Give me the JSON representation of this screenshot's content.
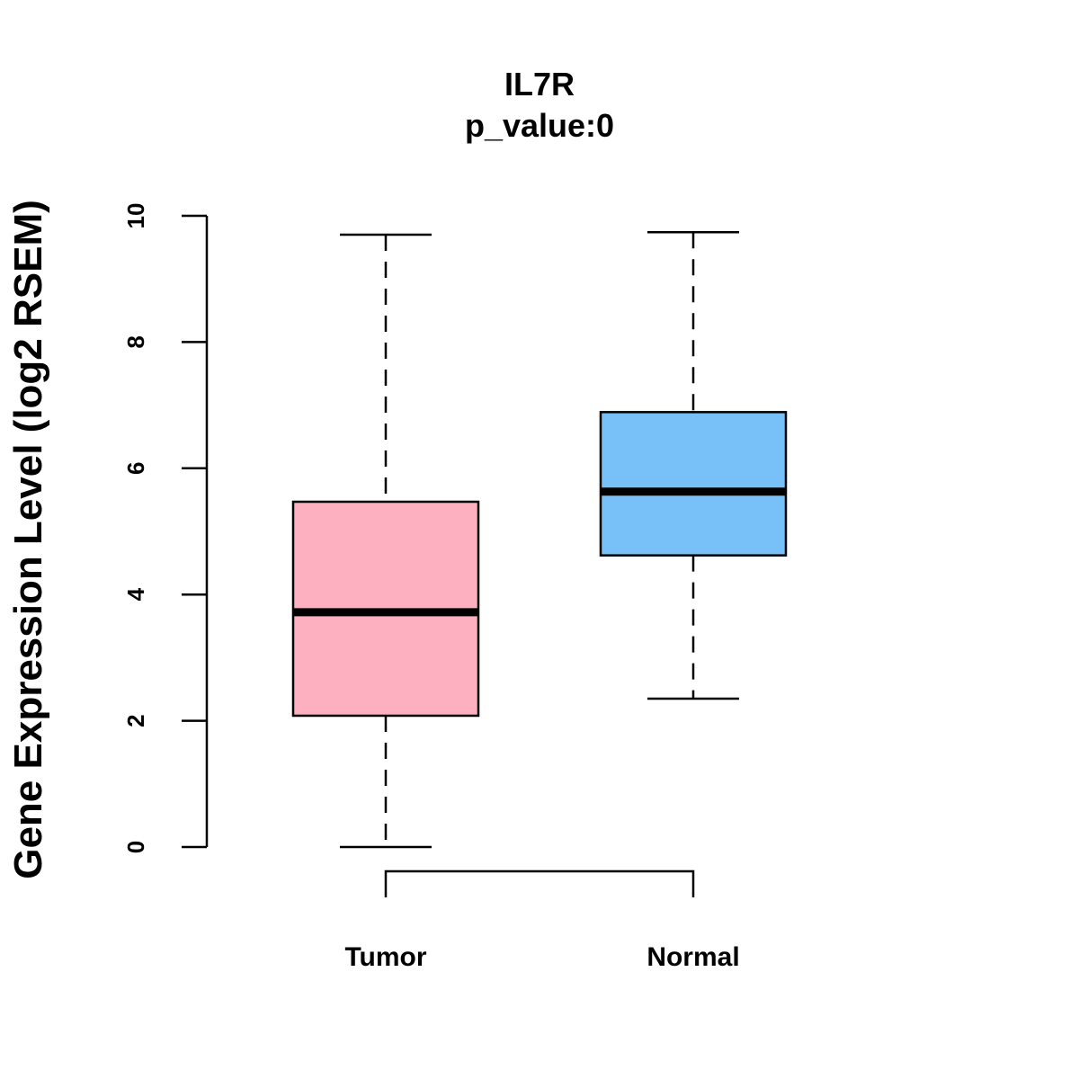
{
  "chart_data": {
    "type": "box",
    "title": "IL7R",
    "subtitle": "p_value:0",
    "xlabel": "",
    "ylabel": "Gene Expression Level (log2 RSEM)",
    "ylim": [
      0,
      10
    ],
    "yticks": [
      0,
      2,
      4,
      6,
      8,
      10
    ],
    "ytick_labels": [
      "0",
      "2",
      "4",
      "6",
      "8",
      "10"
    ],
    "grid": false,
    "categories": [
      "Tumor",
      "Normal"
    ],
    "series": [
      {
        "name": "Tumor",
        "color": "#FDB0C0",
        "whisker_low": 0.0,
        "q1": 2.08,
        "median": 3.72,
        "q3": 5.47,
        "whisker_high": 9.7
      },
      {
        "name": "Normal",
        "color": "#77C1F8",
        "whisker_low": 2.35,
        "q1": 4.62,
        "median": 5.63,
        "q3": 6.89,
        "whisker_high": 9.74
      }
    ],
    "comparison_bracket": [
      "Tumor",
      "Normal"
    ]
  }
}
